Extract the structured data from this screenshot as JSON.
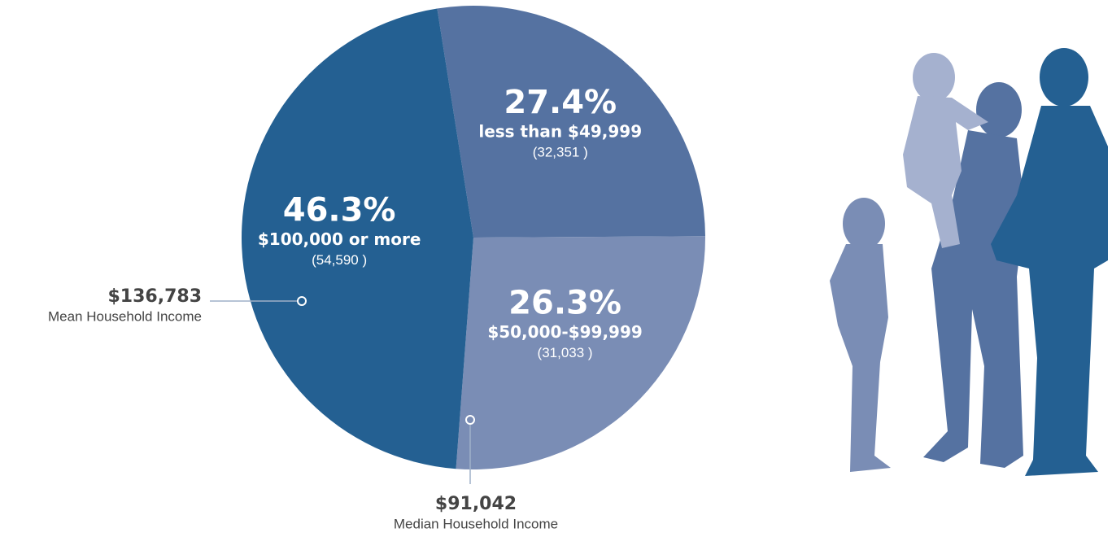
{
  "chart_data": {
    "type": "pie",
    "categories": [
      "less than $49,999",
      "$50,000-$99,999",
      "$100,000 or more"
    ],
    "values": [
      27.4,
      26.3,
      46.3
    ],
    "value_labels": [
      "27.4%",
      "26.3%",
      "46.3%"
    ],
    "count_labels": [
      "(32,351 )",
      "(31,033 )",
      "(54,590 )"
    ],
    "colors": [
      "#5572a1",
      "#7a8db5",
      "#246092"
    ],
    "annotations": [
      {
        "label": "$136,783",
        "text": "Mean Household Income"
      },
      {
        "label": "$91,042",
        "text": "Median Household Income"
      }
    ]
  }
}
